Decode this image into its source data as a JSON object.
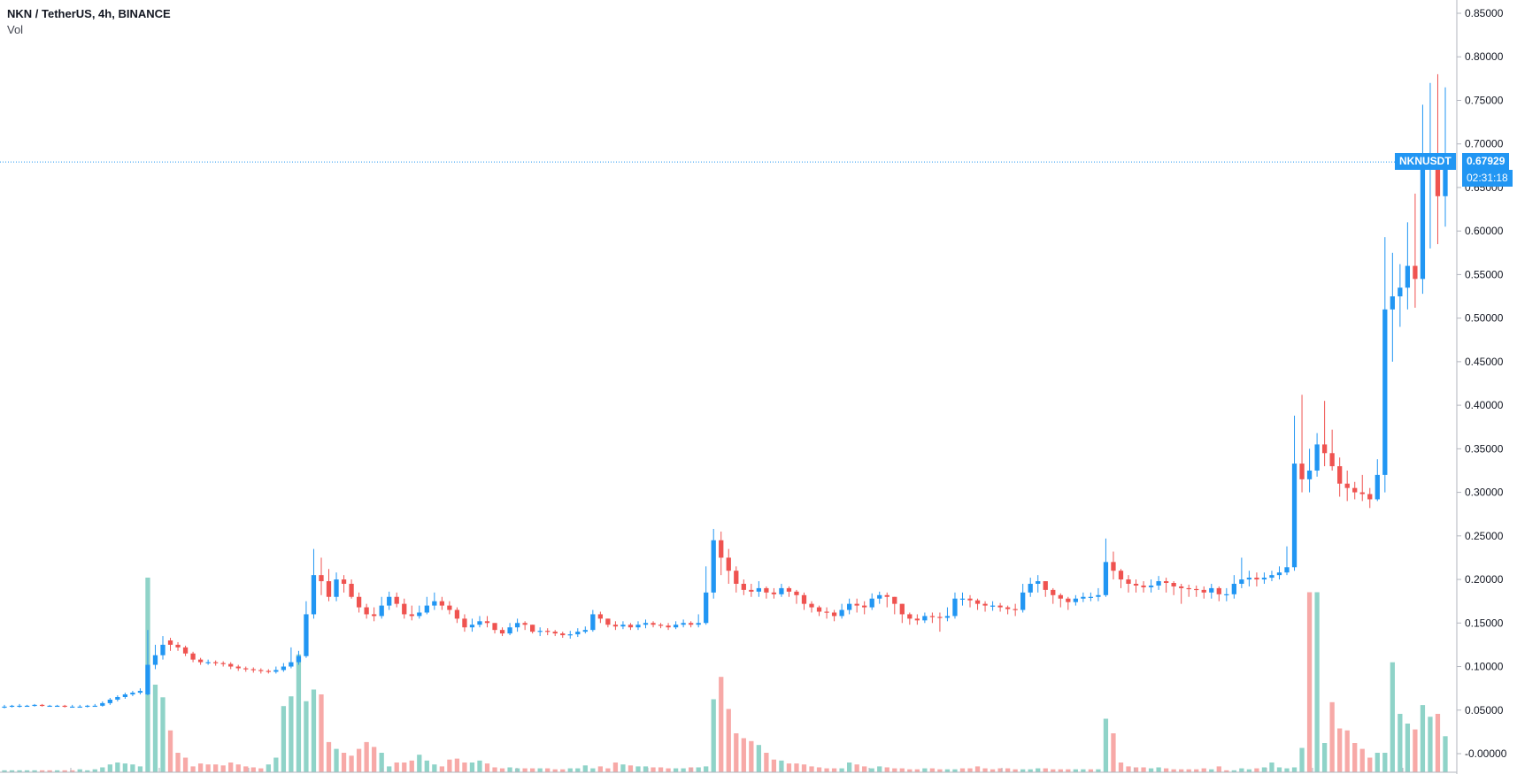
{
  "legend": {
    "symbol_line": "NKN / TetherUS, 4h, BINANCE",
    "volume_label": "Vol"
  },
  "last_price": {
    "ticker": "NKNUSDT",
    "price": "0.67929",
    "countdown": "02:31:18",
    "value": 0.67929
  },
  "colors": {
    "up": "#2196f3",
    "down": "#ef5350",
    "vol_up": "#8fd3c8",
    "vol_down": "#f7a9a7",
    "badge": "#2196f3",
    "axis": "#787b86"
  },
  "chart_data": {
    "type": "candlestick",
    "title": "NKN / TetherUS, 4h, BINANCE",
    "ylim": [
      -0.015,
      0.87
    ],
    "y_ticks": [
      "0.85000",
      "0.80000",
      "0.75000",
      "0.70000",
      "0.65000",
      "0.60000",
      "0.55000",
      "0.50000",
      "0.45000",
      "0.40000",
      "0.35000",
      "0.30000",
      "0.25000",
      "0.20000",
      "0.15000",
      "0.10000",
      "0.05000",
      "-0.00000"
    ],
    "y_tick_values": [
      0.85,
      0.8,
      0.75,
      0.7,
      0.65,
      0.6,
      0.55,
      0.5,
      0.45,
      0.4,
      0.35,
      0.3,
      0.25,
      0.2,
      0.15,
      0.1,
      0.05,
      0.0
    ],
    "candles_close": [
      0.054,
      0.055,
      0.055,
      0.055,
      0.056,
      0.055,
      0.055,
      0.055,
      0.054,
      0.054,
      0.054,
      0.055,
      0.055,
      0.058,
      0.062,
      0.065,
      0.068,
      0.07,
      0.072,
      0.102,
      0.113,
      0.125,
      0.125,
      0.122,
      0.115,
      0.108,
      0.105,
      0.105,
      0.104,
      0.103,
      0.1,
      0.098,
      0.097,
      0.096,
      0.095,
      0.094,
      0.096,
      0.1,
      0.105,
      0.112,
      0.16,
      0.205,
      0.198,
      0.18,
      0.2,
      0.195,
      0.18,
      0.168,
      0.16,
      0.158,
      0.17,
      0.18,
      0.172,
      0.16,
      0.158,
      0.162,
      0.17,
      0.175,
      0.17,
      0.165,
      0.155,
      0.145,
      0.148,
      0.152,
      0.15,
      0.142,
      0.138,
      0.145,
      0.15,
      0.148,
      0.14,
      0.141,
      0.14,
      0.138,
      0.136,
      0.137,
      0.14,
      0.142,
      0.16,
      0.155,
      0.148,
      0.146,
      0.148,
      0.145,
      0.148,
      0.15,
      0.148,
      0.147,
      0.145,
      0.148,
      0.15,
      0.148,
      0.15,
      0.185,
      0.245,
      0.225,
      0.21,
      0.195,
      0.188,
      0.186,
      0.19,
      0.185,
      0.183,
      0.19,
      0.186,
      0.182,
      0.172,
      0.168,
      0.163,
      0.162,
      0.158,
      0.165,
      0.172,
      0.17,
      0.168,
      0.178,
      0.182,
      0.18,
      0.172,
      0.16,
      0.155,
      0.153,
      0.158,
      0.157,
      0.156,
      0.158,
      0.178,
      0.178,
      0.176,
      0.172,
      0.17,
      0.17,
      0.168,
      0.166,
      0.165,
      0.185,
      0.195,
      0.198,
      0.188,
      0.182,
      0.178,
      0.174,
      0.178,
      0.18,
      0.18,
      0.182,
      0.22,
      0.21,
      0.2,
      0.195,
      0.193,
      0.191,
      0.193,
      0.198,
      0.196,
      0.192,
      0.19,
      0.189,
      0.188,
      0.185,
      0.19,
      0.183,
      0.183,
      0.195,
      0.2,
      0.202,
      0.2,
      0.202,
      0.205,
      0.208,
      0.214,
      0.333,
      0.315,
      0.325,
      0.355,
      0.345,
      0.33,
      0.31,
      0.305,
      0.3,
      0.298,
      0.292,
      0.32,
      0.51,
      0.525,
      0.535,
      0.56,
      0.545,
      0.68,
      0.68,
      0.64,
      0.679
    ],
    "candles_open": [
      0.054,
      0.054,
      0.055,
      0.055,
      0.055,
      0.056,
      0.055,
      0.055,
      0.055,
      0.054,
      0.054,
      0.054,
      0.055,
      0.055,
      0.058,
      0.062,
      0.065,
      0.068,
      0.07,
      0.068,
      0.102,
      0.113,
      0.13,
      0.125,
      0.122,
      0.115,
      0.108,
      0.105,
      0.105,
      0.104,
      0.103,
      0.1,
      0.098,
      0.097,
      0.096,
      0.095,
      0.094,
      0.096,
      0.1,
      0.105,
      0.112,
      0.16,
      0.205,
      0.198,
      0.18,
      0.2,
      0.195,
      0.18,
      0.168,
      0.16,
      0.158,
      0.17,
      0.18,
      0.172,
      0.16,
      0.158,
      0.162,
      0.17,
      0.175,
      0.17,
      0.165,
      0.155,
      0.145,
      0.148,
      0.152,
      0.15,
      0.142,
      0.138,
      0.145,
      0.15,
      0.148,
      0.14,
      0.141,
      0.14,
      0.138,
      0.136,
      0.137,
      0.14,
      0.142,
      0.16,
      0.155,
      0.148,
      0.146,
      0.148,
      0.145,
      0.148,
      0.15,
      0.148,
      0.147,
      0.145,
      0.148,
      0.15,
      0.148,
      0.15,
      0.185,
      0.245,
      0.225,
      0.21,
      0.195,
      0.188,
      0.186,
      0.19,
      0.185,
      0.183,
      0.19,
      0.186,
      0.182,
      0.172,
      0.168,
      0.163,
      0.162,
      0.158,
      0.165,
      0.172,
      0.17,
      0.168,
      0.178,
      0.182,
      0.18,
      0.172,
      0.16,
      0.155,
      0.153,
      0.158,
      0.157,
      0.156,
      0.158,
      0.178,
      0.178,
      0.176,
      0.172,
      0.17,
      0.17,
      0.168,
      0.166,
      0.165,
      0.185,
      0.195,
      0.198,
      0.188,
      0.182,
      0.178,
      0.174,
      0.178,
      0.18,
      0.18,
      0.182,
      0.22,
      0.21,
      0.2,
      0.195,
      0.193,
      0.191,
      0.193,
      0.198,
      0.196,
      0.192,
      0.19,
      0.189,
      0.188,
      0.185,
      0.19,
      0.183,
      0.183,
      0.195,
      0.2,
      0.202,
      0.2,
      0.202,
      0.205,
      0.208,
      0.214,
      0.333,
      0.315,
      0.325,
      0.355,
      0.345,
      0.33,
      0.31,
      0.305,
      0.3,
      0.298,
      0.292,
      0.32,
      0.51,
      0.525,
      0.535,
      0.56,
      0.545,
      0.68,
      0.68,
      0.64
    ],
    "volumes": [
      0.002,
      0.002,
      0.002,
      0.002,
      0.002,
      0.002,
      0.002,
      0.002,
      0.002,
      0.002,
      0.003,
      0.002,
      0.003,
      0.005,
      0.008,
      0.01,
      0.009,
      0.008,
      0.006,
      0.2,
      0.09,
      0.077,
      0.043,
      0.02,
      0.015,
      0.006,
      0.009,
      0.008,
      0.008,
      0.007,
      0.01,
      0.008,
      0.006,
      0.005,
      0.004,
      0.008,
      0.015,
      0.068,
      0.078,
      0.121,
      0.073,
      0.085,
      0.08,
      0.031,
      0.024,
      0.02,
      0.017,
      0.024,
      0.031,
      0.026,
      0.02,
      0.006,
      0.01,
      0.01,
      0.012,
      0.018,
      0.012,
      0.008,
      0.006,
      0.013,
      0.014,
      0.01,
      0.01,
      0.012,
      0.009,
      0.005,
      0.004,
      0.005,
      0.004,
      0.004,
      0.004,
      0.004,
      0.004,
      0.003,
      0.003,
      0.004,
      0.004,
      0.007,
      0.004,
      0.006,
      0.004,
      0.01,
      0.008,
      0.007,
      0.006,
      0.006,
      0.005,
      0.005,
      0.004,
      0.004,
      0.004,
      0.005,
      0.005,
      0.006,
      0.075,
      0.098,
      0.065,
      0.04,
      0.035,
      0.032,
      0.028,
      0.02,
      0.013,
      0.012,
      0.009,
      0.009,
      0.008,
      0.006,
      0.005,
      0.004,
      0.004,
      0.004,
      0.01,
      0.008,
      0.006,
      0.004,
      0.006,
      0.005,
      0.004,
      0.004,
      0.003,
      0.003,
      0.004,
      0.004,
      0.003,
      0.003,
      0.003,
      0.004,
      0.004,
      0.006,
      0.004,
      0.003,
      0.004,
      0.004,
      0.003,
      0.003,
      0.003,
      0.004,
      0.004,
      0.003,
      0.003,
      0.003,
      0.003,
      0.003,
      0.003,
      0.003,
      0.055,
      0.04,
      0.01,
      0.006,
      0.005,
      0.005,
      0.004,
      0.005,
      0.004,
      0.003,
      0.003,
      0.003,
      0.003,
      0.004,
      0.003,
      0.006,
      0.002,
      0.002,
      0.004,
      0.003,
      0.004,
      0.005,
      0.01,
      0.005,
      0.004,
      0.005,
      0.025,
      0.185,
      0.185,
      0.03,
      0.072,
      0.045,
      0.043,
      0.03,
      0.024,
      0.015,
      0.02,
      0.02,
      0.113,
      0.06,
      0.05,
      0.044,
      0.069,
      0.057,
      0.06,
      0.037
    ],
    "volume_up": [
      1,
      1,
      1,
      1,
      1,
      0,
      0,
      1,
      0,
      0,
      1,
      1,
      1,
      1,
      1,
      1,
      1,
      1,
      1,
      1,
      1,
      1,
      0,
      0,
      0,
      0,
      0,
      0,
      0,
      0,
      0,
      0,
      0,
      0,
      0,
      1,
      1,
      1,
      1,
      1,
      1,
      1,
      0,
      0,
      1,
      0,
      0,
      0,
      0,
      0,
      1,
      1,
      0,
      0,
      0,
      1,
      1,
      1,
      0,
      0,
      0,
      0,
      1,
      1,
      0,
      0,
      0,
      1,
      1,
      0,
      0,
      1,
      0,
      0,
      0,
      1,
      1,
      1,
      1,
      0,
      0,
      0,
      1,
      0,
      1,
      1,
      0,
      0,
      0,
      1,
      1,
      0,
      1,
      1,
      1,
      0,
      0,
      0,
      0,
      0,
      1,
      0,
      0,
      1,
      0,
      0,
      0,
      0,
      0,
      0,
      0,
      1,
      1,
      0,
      0,
      1,
      1,
      0,
      0,
      0,
      0,
      0,
      1,
      0,
      0,
      1,
      1,
      0,
      0,
      0,
      0,
      0,
      0,
      0,
      0,
      1,
      1,
      1,
      0,
      0,
      0,
      0,
      1,
      1,
      0,
      1,
      1,
      0,
      0,
      0,
      0,
      0,
      1,
      1,
      0,
      0,
      0,
      0,
      0,
      0,
      1,
      0,
      0,
      1,
      1,
      1,
      0,
      1,
      1,
      1,
      1,
      1,
      1,
      0,
      1,
      1,
      0,
      0,
      0,
      0,
      0,
      0,
      1,
      1,
      1,
      1,
      1,
      0,
      1,
      1,
      0,
      1
    ],
    "wick_high": [
      0.056,
      0.056,
      0.057,
      0.056,
      0.057,
      0.057,
      0.056,
      0.056,
      0.056,
      0.056,
      0.056,
      0.056,
      0.057,
      0.06,
      0.064,
      0.067,
      0.07,
      0.072,
      0.075,
      0.142,
      0.125,
      0.135,
      0.133,
      0.128,
      0.124,
      0.117,
      0.11,
      0.108,
      0.107,
      0.106,
      0.105,
      0.102,
      0.1,
      0.099,
      0.098,
      0.097,
      0.1,
      0.104,
      0.122,
      0.118,
      0.175,
      0.235,
      0.225,
      0.212,
      0.208,
      0.205,
      0.2,
      0.185,
      0.172,
      0.168,
      0.18,
      0.186,
      0.185,
      0.178,
      0.17,
      0.17,
      0.18,
      0.185,
      0.18,
      0.175,
      0.168,
      0.16,
      0.155,
      0.158,
      0.158,
      0.15,
      0.145,
      0.15,
      0.155,
      0.152,
      0.148,
      0.145,
      0.144,
      0.142,
      0.14,
      0.141,
      0.144,
      0.146,
      0.165,
      0.163,
      0.155,
      0.152,
      0.152,
      0.15,
      0.152,
      0.154,
      0.152,
      0.15,
      0.15,
      0.152,
      0.154,
      0.152,
      0.16,
      0.215,
      0.258,
      0.255,
      0.235,
      0.215,
      0.2,
      0.195,
      0.198,
      0.192,
      0.19,
      0.195,
      0.192,
      0.188,
      0.185,
      0.175,
      0.17,
      0.168,
      0.165,
      0.172,
      0.178,
      0.178,
      0.175,
      0.184,
      0.186,
      0.185,
      0.18,
      0.168,
      0.162,
      0.16,
      0.162,
      0.162,
      0.162,
      0.168,
      0.185,
      0.185,
      0.182,
      0.178,
      0.175,
      0.175,
      0.173,
      0.17,
      0.172,
      0.195,
      0.202,
      0.205,
      0.198,
      0.19,
      0.184,
      0.18,
      0.182,
      0.185,
      0.185,
      0.19,
      0.247,
      0.232,
      0.212,
      0.205,
      0.2,
      0.198,
      0.2,
      0.204,
      0.202,
      0.198,
      0.195,
      0.194,
      0.193,
      0.192,
      0.195,
      0.192,
      0.19,
      0.205,
      0.225,
      0.21,
      0.208,
      0.208,
      0.21,
      0.215,
      0.238,
      0.388,
      0.412,
      0.35,
      0.368,
      0.405,
      0.372,
      0.34,
      0.325,
      0.312,
      0.32,
      0.305,
      0.338,
      0.593,
      0.575,
      0.562,
      0.61,
      0.643,
      0.745,
      0.77,
      0.78,
      0.765
    ],
    "wick_low": [
      0.052,
      0.053,
      0.053,
      0.054,
      0.054,
      0.054,
      0.054,
      0.054,
      0.053,
      0.053,
      0.053,
      0.053,
      0.054,
      0.054,
      0.056,
      0.06,
      0.063,
      0.066,
      0.068,
      0.067,
      0.097,
      0.108,
      0.118,
      0.118,
      0.112,
      0.105,
      0.102,
      0.102,
      0.101,
      0.1,
      0.097,
      0.095,
      0.094,
      0.093,
      0.092,
      0.092,
      0.092,
      0.094,
      0.098,
      0.102,
      0.11,
      0.155,
      0.182,
      0.175,
      0.175,
      0.185,
      0.178,
      0.162,
      0.155,
      0.152,
      0.155,
      0.165,
      0.168,
      0.155,
      0.153,
      0.155,
      0.16,
      0.165,
      0.165,
      0.16,
      0.15,
      0.14,
      0.14,
      0.145,
      0.145,
      0.138,
      0.135,
      0.136,
      0.14,
      0.142,
      0.138,
      0.135,
      0.136,
      0.135,
      0.133,
      0.132,
      0.134,
      0.138,
      0.14,
      0.15,
      0.145,
      0.142,
      0.143,
      0.142,
      0.142,
      0.144,
      0.145,
      0.144,
      0.142,
      0.143,
      0.145,
      0.145,
      0.145,
      0.148,
      0.178,
      0.205,
      0.195,
      0.185,
      0.182,
      0.18,
      0.18,
      0.178,
      0.178,
      0.18,
      0.18,
      0.172,
      0.165,
      0.162,
      0.158,
      0.155,
      0.152,
      0.155,
      0.16,
      0.162,
      0.16,
      0.165,
      0.172,
      0.168,
      0.16,
      0.15,
      0.148,
      0.148,
      0.15,
      0.15,
      0.14,
      0.152,
      0.155,
      0.17,
      0.168,
      0.165,
      0.163,
      0.164,
      0.163,
      0.16,
      0.158,
      0.162,
      0.18,
      0.185,
      0.18,
      0.172,
      0.168,
      0.165,
      0.17,
      0.174,
      0.175,
      0.175,
      0.18,
      0.2,
      0.19,
      0.185,
      0.185,
      0.185,
      0.185,
      0.188,
      0.185,
      0.182,
      0.172,
      0.18,
      0.18,
      0.178,
      0.178,
      0.175,
      0.175,
      0.178,
      0.19,
      0.192,
      0.192,
      0.195,
      0.198,
      0.2,
      0.205,
      0.21,
      0.3,
      0.3,
      0.318,
      0.33,
      0.325,
      0.295,
      0.29,
      0.292,
      0.29,
      0.282,
      0.29,
      0.3,
      0.45,
      0.49,
      0.51,
      0.512,
      0.528,
      0.58,
      0.585,
      0.605
    ]
  }
}
